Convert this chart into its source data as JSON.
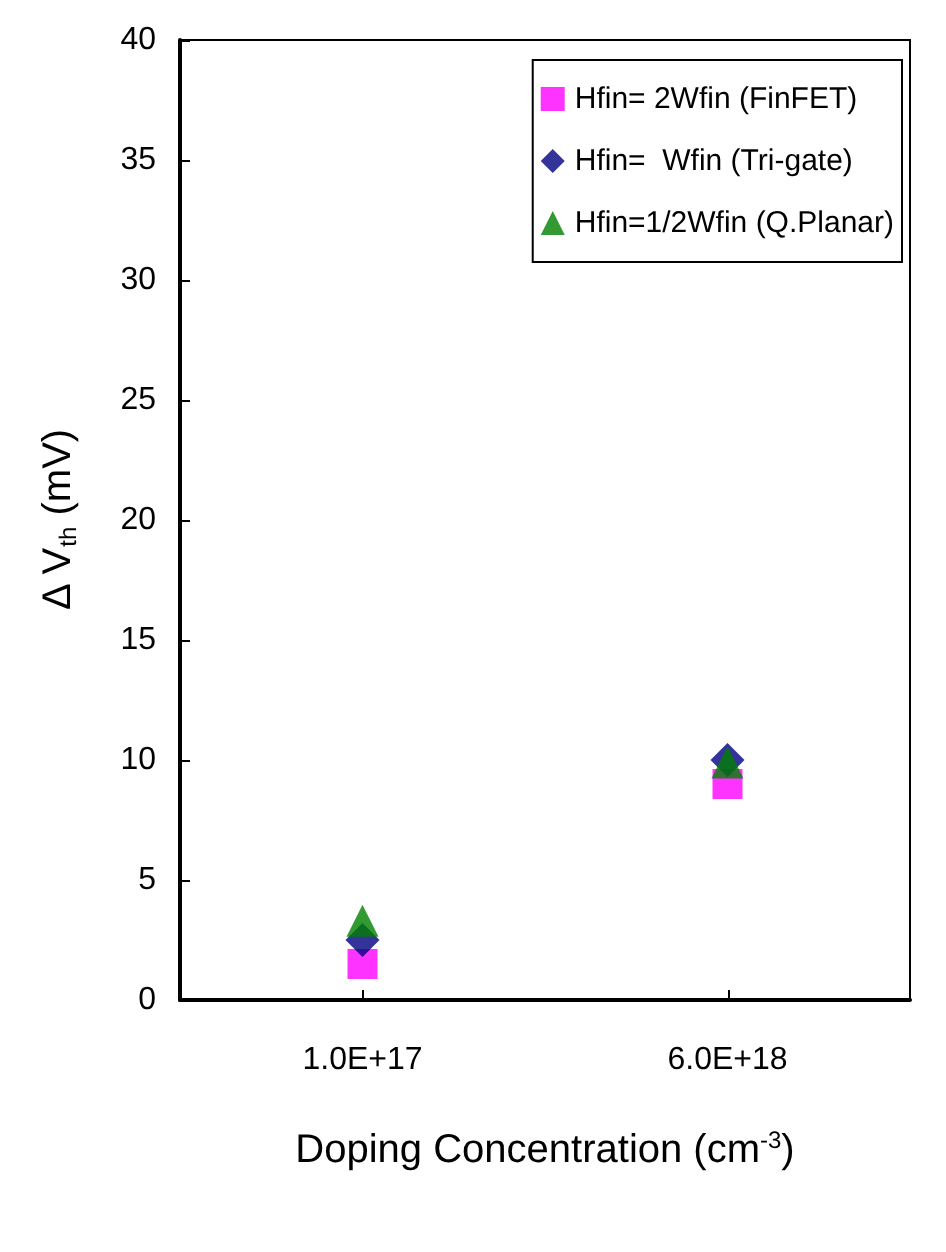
{
  "chart_data": {
    "type": "scatter",
    "xlabel": "Doping Concentration (cm$^{-3}$)",
    "ylabel": "Δ V$_{th}$ (mV)",
    "categories": [
      "1.0E+17",
      "6.0E+18"
    ],
    "series": [
      {
        "name": "Hfin= 2Wfin (FinFET)",
        "color": "#ff00ff",
        "marker": "square",
        "values": [
          1.5,
          9.0
        ]
      },
      {
        "name": "Hfin=  Wfin (Tri-gate)",
        "color": "#000080",
        "marker": "diamond",
        "values": [
          2.5,
          10.0
        ]
      },
      {
        "name": "Hfin=1/2Wfin (Q.Planar)",
        "color": "#008000",
        "marker": "triangle",
        "values": [
          3.3,
          9.9
        ]
      }
    ],
    "ylim": [
      0,
      40
    ],
    "yticks": [
      0,
      5,
      10,
      15,
      20,
      25,
      30,
      35,
      40
    ],
    "grid": false,
    "legend": "top right"
  }
}
